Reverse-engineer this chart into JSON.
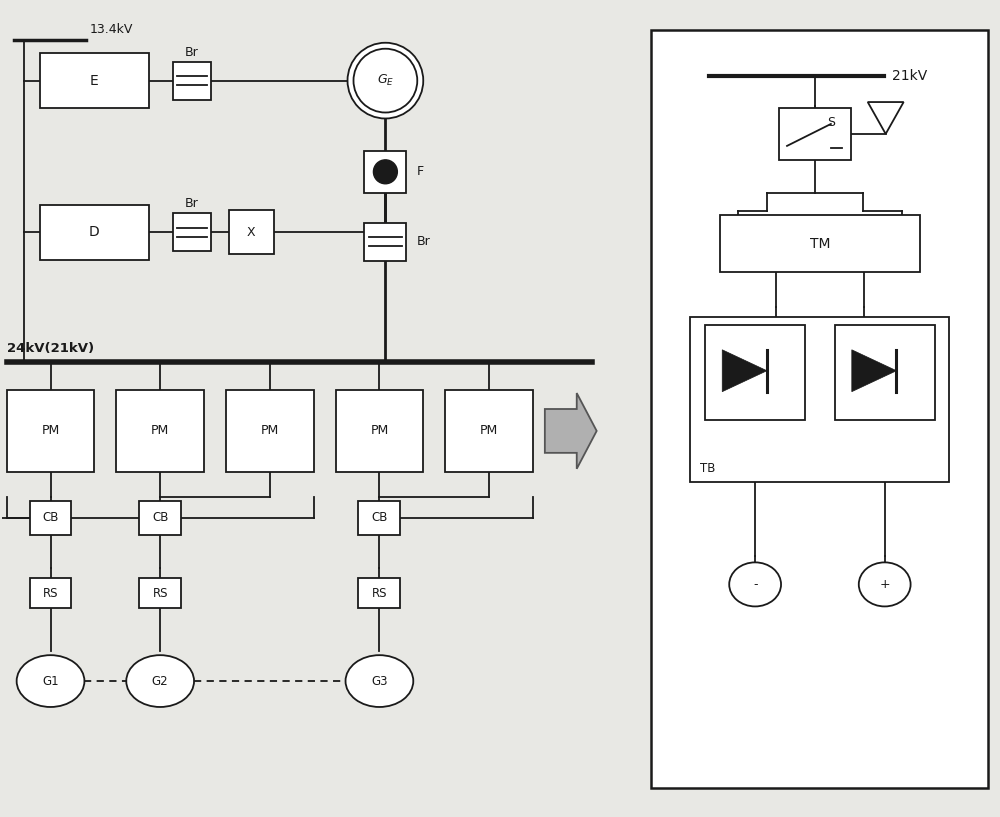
{
  "bg_color": "#e8e8e4",
  "line_color": "#1a1a1a",
  "fig_width": 10.0,
  "fig_height": 8.17,
  "left": {
    "v13": "13.4kV",
    "bus_label": "24kV(21kV)",
    "br_label": "Br",
    "e_label": "E",
    "d_label": "D",
    "x_label": "X",
    "ge_label": "$G_E$",
    "f_label": "F",
    "pm_labels": [
      "PM",
      "PM",
      "PM",
      "PM",
      "PM"
    ],
    "cb_labels": [
      "CB",
      "CB",
      "CB"
    ],
    "rs_labels": [
      "RS",
      "RS",
      "RS"
    ],
    "g_labels": [
      "G1",
      "G2",
      "G3"
    ]
  },
  "right": {
    "v21": "21kV",
    "s_label": "S",
    "tm_label": "TM",
    "tb_label": "TB",
    "neg": "-",
    "pos": "+"
  }
}
